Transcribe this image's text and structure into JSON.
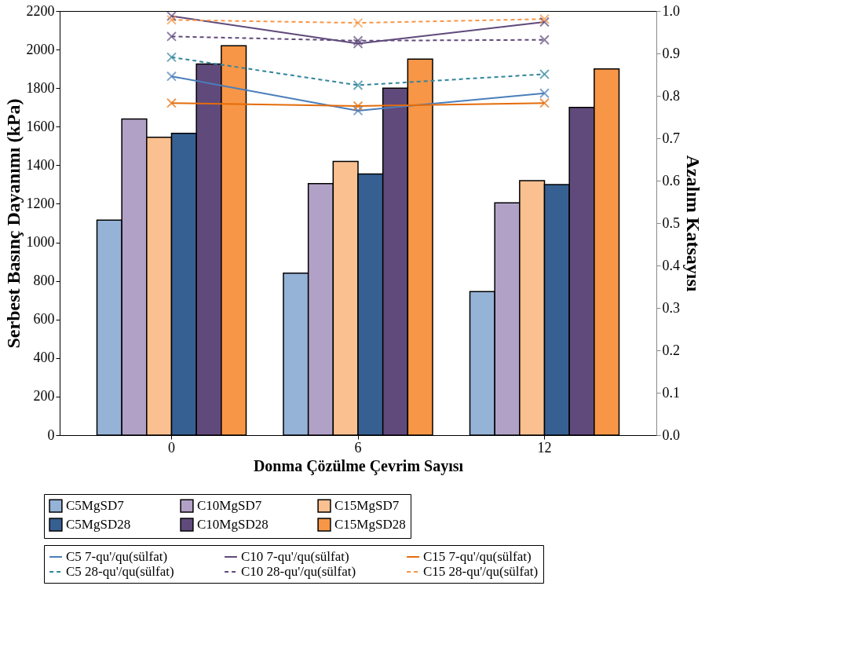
{
  "chart_data": {
    "type": "bar",
    "xlabel": "Donma Çözülme Çevrim Sayısı",
    "ylabel": "Serbest Basınç Dayanımı (kPa)",
    "y2label": "Azalım Katsayısı",
    "categories": [
      "0",
      "6",
      "12"
    ],
    "ylim": [
      0,
      2200
    ],
    "yticks": [
      0,
      200,
      400,
      600,
      800,
      1000,
      1200,
      1400,
      1600,
      1800,
      2000,
      2200
    ],
    "y2lim": [
      0,
      1.0
    ],
    "y2ticks": [
      {
        "value": 0,
        "label": "0.0"
      },
      {
        "value": 0.1,
        "label": "0.1"
      },
      {
        "value": 0.2,
        "label": "0.2"
      },
      {
        "value": 0.3,
        "label": "0.3"
      },
      {
        "value": 0.4,
        "label": "0.4"
      },
      {
        "value": 0.5,
        "label": "0.5"
      },
      {
        "value": 0.6,
        "label": "0.6"
      },
      {
        "value": 0.7,
        "label": "0.7"
      },
      {
        "value": 0.8,
        "label": "0.8"
      },
      {
        "value": 0.9,
        "label": "0.9"
      },
      {
        "value": 1.0,
        "label": "1.0"
      }
    ],
    "grid": false,
    "legend": "bottom",
    "marker": "cross",
    "series": [
      {
        "name": "C5MgSD7",
        "type": "bar",
        "color": "#95b3d7",
        "values": [
          1115,
          840,
          745
        ]
      },
      {
        "name": "C10MgSD7",
        "type": "bar",
        "color": "#b2a1c7",
        "values": [
          1640,
          1305,
          1205
        ]
      },
      {
        "name": "C15MgSD7",
        "type": "bar",
        "color": "#fac090",
        "values": [
          1545,
          1420,
          1320
        ]
      },
      {
        "name": "C5MgSD28",
        "type": "bar",
        "color": "#366092",
        "values": [
          1565,
          1355,
          1300
        ]
      },
      {
        "name": "C10MgSD28",
        "type": "bar",
        "color": "#604a7b",
        "values": [
          1925,
          1800,
          1700
        ]
      },
      {
        "name": "C15MgSD28",
        "type": "bar",
        "color": "#f79646",
        "values": [
          2020,
          1950,
          1900
        ]
      },
      {
        "name": "C5 7-qu'/qu(sülfat)",
        "type": "line",
        "axis": "y2",
        "line_style": "solid",
        "color": "#4a7ebb",
        "values": [
          0.846,
          0.765,
          0.806
        ]
      },
      {
        "name": "C10 7-qu'/qu(sülfat)",
        "type": "line",
        "axis": "y2",
        "line_style": "solid",
        "color": "#5f497a",
        "values": [
          0.988,
          0.923,
          0.974
        ]
      },
      {
        "name": "C15 7-qu'/qu(sülfat)",
        "type": "line",
        "axis": "y2",
        "line_style": "solid",
        "color": "#e46c0a",
        "values": [
          0.783,
          0.776,
          0.783
        ]
      },
      {
        "name": "C5 28-qu'/qu(sülfat)",
        "type": "line",
        "axis": "y2",
        "line_style": "dashed",
        "color": "#31859c",
        "values": [
          0.891,
          0.825,
          0.851
        ]
      },
      {
        "name": "C10 28-qu'/qu(sülfat)",
        "type": "line",
        "axis": "y2",
        "line_style": "dashed",
        "color": "#604a7b",
        "values": [
          0.94,
          0.93,
          0.932
        ]
      },
      {
        "name": "C15 28-qu'/qu(sülfat)",
        "type": "line",
        "axis": "y2",
        "line_style": "dashed",
        "color": "#f79646",
        "values": [
          0.979,
          0.972,
          0.981
        ]
      }
    ]
  }
}
